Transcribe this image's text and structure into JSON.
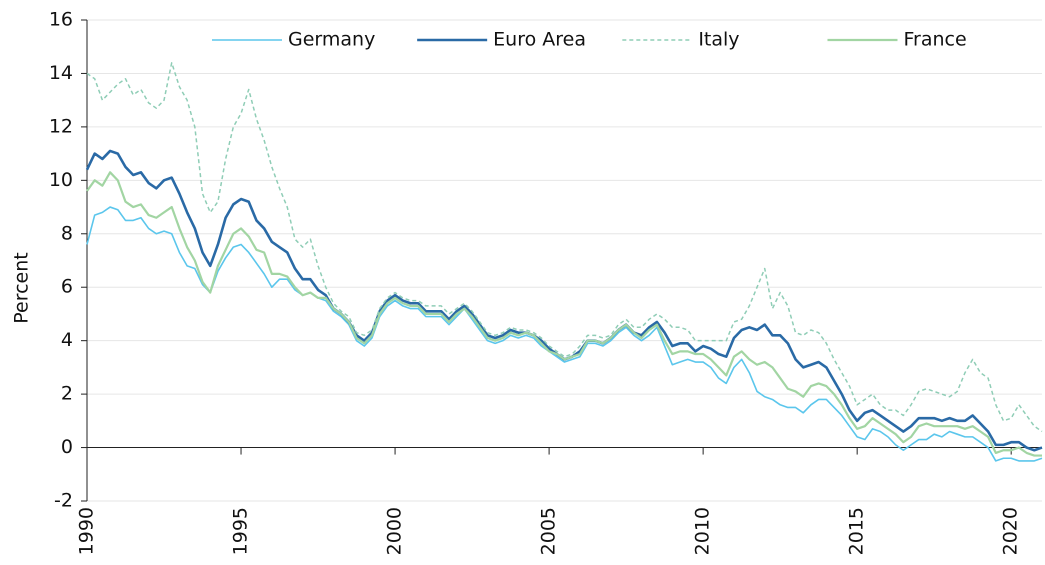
{
  "chart_data": {
    "type": "line",
    "y_label": "Percent",
    "x": [
      1990,
      1990.25,
      1990.5,
      1990.75,
      1991,
      1991.25,
      1991.5,
      1991.75,
      1992,
      1992.25,
      1992.5,
      1992.75,
      1993,
      1993.25,
      1993.5,
      1993.75,
      1994,
      1994.25,
      1994.5,
      1994.75,
      1995,
      1995.25,
      1995.5,
      1995.75,
      1996,
      1996.25,
      1996.5,
      1996.75,
      1997,
      1997.25,
      1997.5,
      1997.75,
      1998,
      1998.25,
      1998.5,
      1998.75,
      1999,
      1999.25,
      1999.5,
      1999.75,
      2000,
      2000.25,
      2000.5,
      2000.75,
      2001,
      2001.25,
      2001.5,
      2001.75,
      2002,
      2002.25,
      2002.5,
      2002.75,
      2003,
      2003.25,
      2003.5,
      2003.75,
      2004,
      2004.25,
      2004.5,
      2004.75,
      2005,
      2005.25,
      2005.5,
      2005.75,
      2006,
      2006.25,
      2006.5,
      2006.75,
      2007,
      2007.25,
      2007.5,
      2007.75,
      2008,
      2008.25,
      2008.5,
      2008.75,
      2009,
      2009.25,
      2009.5,
      2009.75,
      2010,
      2010.25,
      2010.5,
      2010.75,
      2011,
      2011.25,
      2011.5,
      2011.75,
      2012,
      2012.25,
      2012.5,
      2012.75,
      2013,
      2013.25,
      2013.5,
      2013.75,
      2014,
      2014.25,
      2014.5,
      2014.75,
      2015,
      2015.25,
      2015.5,
      2015.75,
      2016,
      2016.25,
      2016.5,
      2016.75,
      2017,
      2017.25,
      2017.5,
      2017.75,
      2018,
      2018.25,
      2018.5,
      2018.75,
      2019,
      2019.25,
      2019.5,
      2019.75,
      2020,
      2020.25,
      2020.5,
      2020.75,
      2021
    ],
    "series": [
      {
        "name": "Germany",
        "color": "#5bc6ec",
        "linestyle": "solid",
        "width": 1.6,
        "values": [
          7.6,
          8.7,
          8.8,
          9.0,
          8.9,
          8.5,
          8.5,
          8.6,
          8.2,
          8.0,
          8.1,
          8.0,
          7.3,
          6.8,
          6.7,
          6.1,
          5.8,
          6.6,
          7.1,
          7.5,
          7.6,
          7.3,
          6.9,
          6.5,
          6.0,
          6.3,
          6.3,
          5.9,
          5.7,
          5.8,
          5.6,
          5.5,
          5.1,
          4.9,
          4.6,
          4.0,
          3.8,
          4.1,
          4.9,
          5.3,
          5.5,
          5.3,
          5.2,
          5.2,
          4.9,
          4.9,
          4.9,
          4.6,
          4.9,
          5.2,
          4.8,
          4.4,
          4.0,
          3.9,
          4.0,
          4.2,
          4.1,
          4.2,
          4.1,
          3.8,
          3.6,
          3.4,
          3.2,
          3.3,
          3.4,
          3.9,
          3.9,
          3.8,
          4.0,
          4.3,
          4.5,
          4.2,
          4.0,
          4.2,
          4.5,
          3.8,
          3.1,
          3.2,
          3.3,
          3.2,
          3.2,
          3.0,
          2.6,
          2.4,
          3.0,
          3.3,
          2.8,
          2.1,
          1.9,
          1.8,
          1.6,
          1.5,
          1.5,
          1.3,
          1.6,
          1.8,
          1.8,
          1.5,
          1.2,
          0.8,
          0.4,
          0.3,
          0.7,
          0.6,
          0.4,
          0.1,
          -0.1,
          0.1,
          0.3,
          0.3,
          0.5,
          0.4,
          0.6,
          0.5,
          0.4,
          0.4,
          0.2,
          0.0,
          -0.5,
          -0.4,
          -0.4,
          -0.5,
          -0.5,
          -0.5,
          -0.4
        ]
      },
      {
        "name": "Euro Area",
        "color": "#2a6aa6",
        "linestyle": "solid",
        "width": 2.6,
        "values": [
          10.4,
          11.0,
          10.8,
          11.1,
          11.0,
          10.5,
          10.2,
          10.3,
          9.9,
          9.7,
          10.0,
          10.1,
          9.5,
          8.8,
          8.2,
          7.3,
          6.8,
          7.6,
          8.6,
          9.1,
          9.3,
          9.2,
          8.5,
          8.2,
          7.7,
          7.5,
          7.3,
          6.7,
          6.3,
          6.3,
          5.9,
          5.7,
          5.2,
          5.0,
          4.7,
          4.2,
          4.0,
          4.3,
          5.1,
          5.5,
          5.7,
          5.5,
          5.4,
          5.4,
          5.1,
          5.1,
          5.1,
          4.8,
          5.1,
          5.3,
          5.0,
          4.6,
          4.2,
          4.1,
          4.2,
          4.4,
          4.3,
          4.3,
          4.2,
          4.0,
          3.7,
          3.5,
          3.3,
          3.4,
          3.6,
          4.0,
          4.0,
          3.9,
          4.1,
          4.4,
          4.6,
          4.3,
          4.2,
          4.5,
          4.7,
          4.3,
          3.8,
          3.9,
          3.9,
          3.6,
          3.8,
          3.7,
          3.5,
          3.4,
          4.1,
          4.4,
          4.5,
          4.4,
          4.6,
          4.2,
          4.2,
          3.9,
          3.3,
          3.0,
          3.1,
          3.2,
          3.0,
          2.5,
          2.0,
          1.4,
          1.0,
          1.3,
          1.4,
          1.2,
          1.0,
          0.8,
          0.6,
          0.8,
          1.1,
          1.1,
          1.1,
          1.0,
          1.1,
          1.0,
          1.0,
          1.2,
          0.9,
          0.6,
          0.1,
          0.1,
          0.2,
          0.2,
          0.0,
          -0.1,
          0.0
        ]
      },
      {
        "name": "Italy",
        "color": "#8fcdb6",
        "linestyle": "dashed",
        "width": 1.5,
        "values": [
          14.0,
          13.8,
          13.0,
          13.3,
          13.6,
          13.8,
          13.2,
          13.4,
          12.9,
          12.7,
          13.0,
          14.4,
          13.5,
          13.0,
          12.0,
          9.5,
          8.8,
          9.2,
          10.8,
          12.0,
          12.5,
          13.4,
          12.3,
          11.5,
          10.5,
          9.7,
          9.0,
          7.8,
          7.5,
          7.8,
          6.8,
          6.0,
          5.4,
          5.1,
          4.9,
          4.3,
          4.2,
          4.4,
          5.2,
          5.6,
          5.8,
          5.6,
          5.5,
          5.5,
          5.3,
          5.3,
          5.3,
          5.0,
          5.2,
          5.4,
          5.1,
          4.7,
          4.3,
          4.2,
          4.3,
          4.5,
          4.4,
          4.4,
          4.3,
          4.1,
          3.8,
          3.6,
          3.4,
          3.5,
          3.8,
          4.2,
          4.2,
          4.1,
          4.2,
          4.6,
          4.8,
          4.5,
          4.5,
          4.8,
          5.0,
          4.8,
          4.5,
          4.5,
          4.4,
          4.0,
          4.0,
          4.0,
          4.0,
          4.0,
          4.7,
          4.8,
          5.3,
          6.0,
          6.7,
          5.2,
          5.8,
          5.3,
          4.3,
          4.2,
          4.4,
          4.3,
          3.9,
          3.3,
          2.8,
          2.3,
          1.6,
          1.8,
          2.0,
          1.6,
          1.4,
          1.4,
          1.2,
          1.6,
          2.1,
          2.2,
          2.1,
          2.0,
          1.9,
          2.1,
          2.8,
          3.3,
          2.8,
          2.6,
          1.6,
          1.0,
          1.1,
          1.6,
          1.2,
          0.8,
          0.6
        ]
      },
      {
        "name": "France",
        "color": "#a2d5a3",
        "linestyle": "solid",
        "width": 2.2,
        "values": [
          9.6,
          10.0,
          9.8,
          10.3,
          10.0,
          9.2,
          9.0,
          9.1,
          8.7,
          8.6,
          8.8,
          9.0,
          8.2,
          7.5,
          7.0,
          6.2,
          5.8,
          6.8,
          7.4,
          8.0,
          8.2,
          7.9,
          7.4,
          7.3,
          6.5,
          6.5,
          6.4,
          6.0,
          5.7,
          5.8,
          5.6,
          5.6,
          5.2,
          5.0,
          4.7,
          4.1,
          3.9,
          4.2,
          5.0,
          5.4,
          5.6,
          5.4,
          5.3,
          5.3,
          5.0,
          5.0,
          5.0,
          4.7,
          5.0,
          5.2,
          4.9,
          4.5,
          4.1,
          4.0,
          4.1,
          4.3,
          4.2,
          4.3,
          4.2,
          3.9,
          3.6,
          3.5,
          3.3,
          3.4,
          3.5,
          4.0,
          4.0,
          3.9,
          4.1,
          4.4,
          4.6,
          4.3,
          4.1,
          4.4,
          4.6,
          4.0,
          3.5,
          3.6,
          3.6,
          3.5,
          3.5,
          3.3,
          3.0,
          2.7,
          3.4,
          3.6,
          3.3,
          3.1,
          3.2,
          3.0,
          2.6,
          2.2,
          2.1,
          1.9,
          2.3,
          2.4,
          2.3,
          2.0,
          1.6,
          1.1,
          0.7,
          0.8,
          1.1,
          0.9,
          0.7,
          0.5,
          0.2,
          0.4,
          0.8,
          0.9,
          0.8,
          0.8,
          0.8,
          0.8,
          0.7,
          0.8,
          0.6,
          0.4,
          -0.2,
          -0.1,
          -0.1,
          0.0,
          -0.2,
          -0.3,
          -0.3
        ]
      }
    ],
    "xlim": [
      1990,
      2021
    ],
    "xticks": [
      1990,
      1995,
      2000,
      2005,
      2010,
      2015,
      2020
    ],
    "ylim": [
      -2,
      16
    ],
    "yticks": [
      -2,
      0,
      2,
      4,
      6,
      8,
      10,
      12,
      14,
      16
    ],
    "grid": true,
    "legend": "top"
  }
}
